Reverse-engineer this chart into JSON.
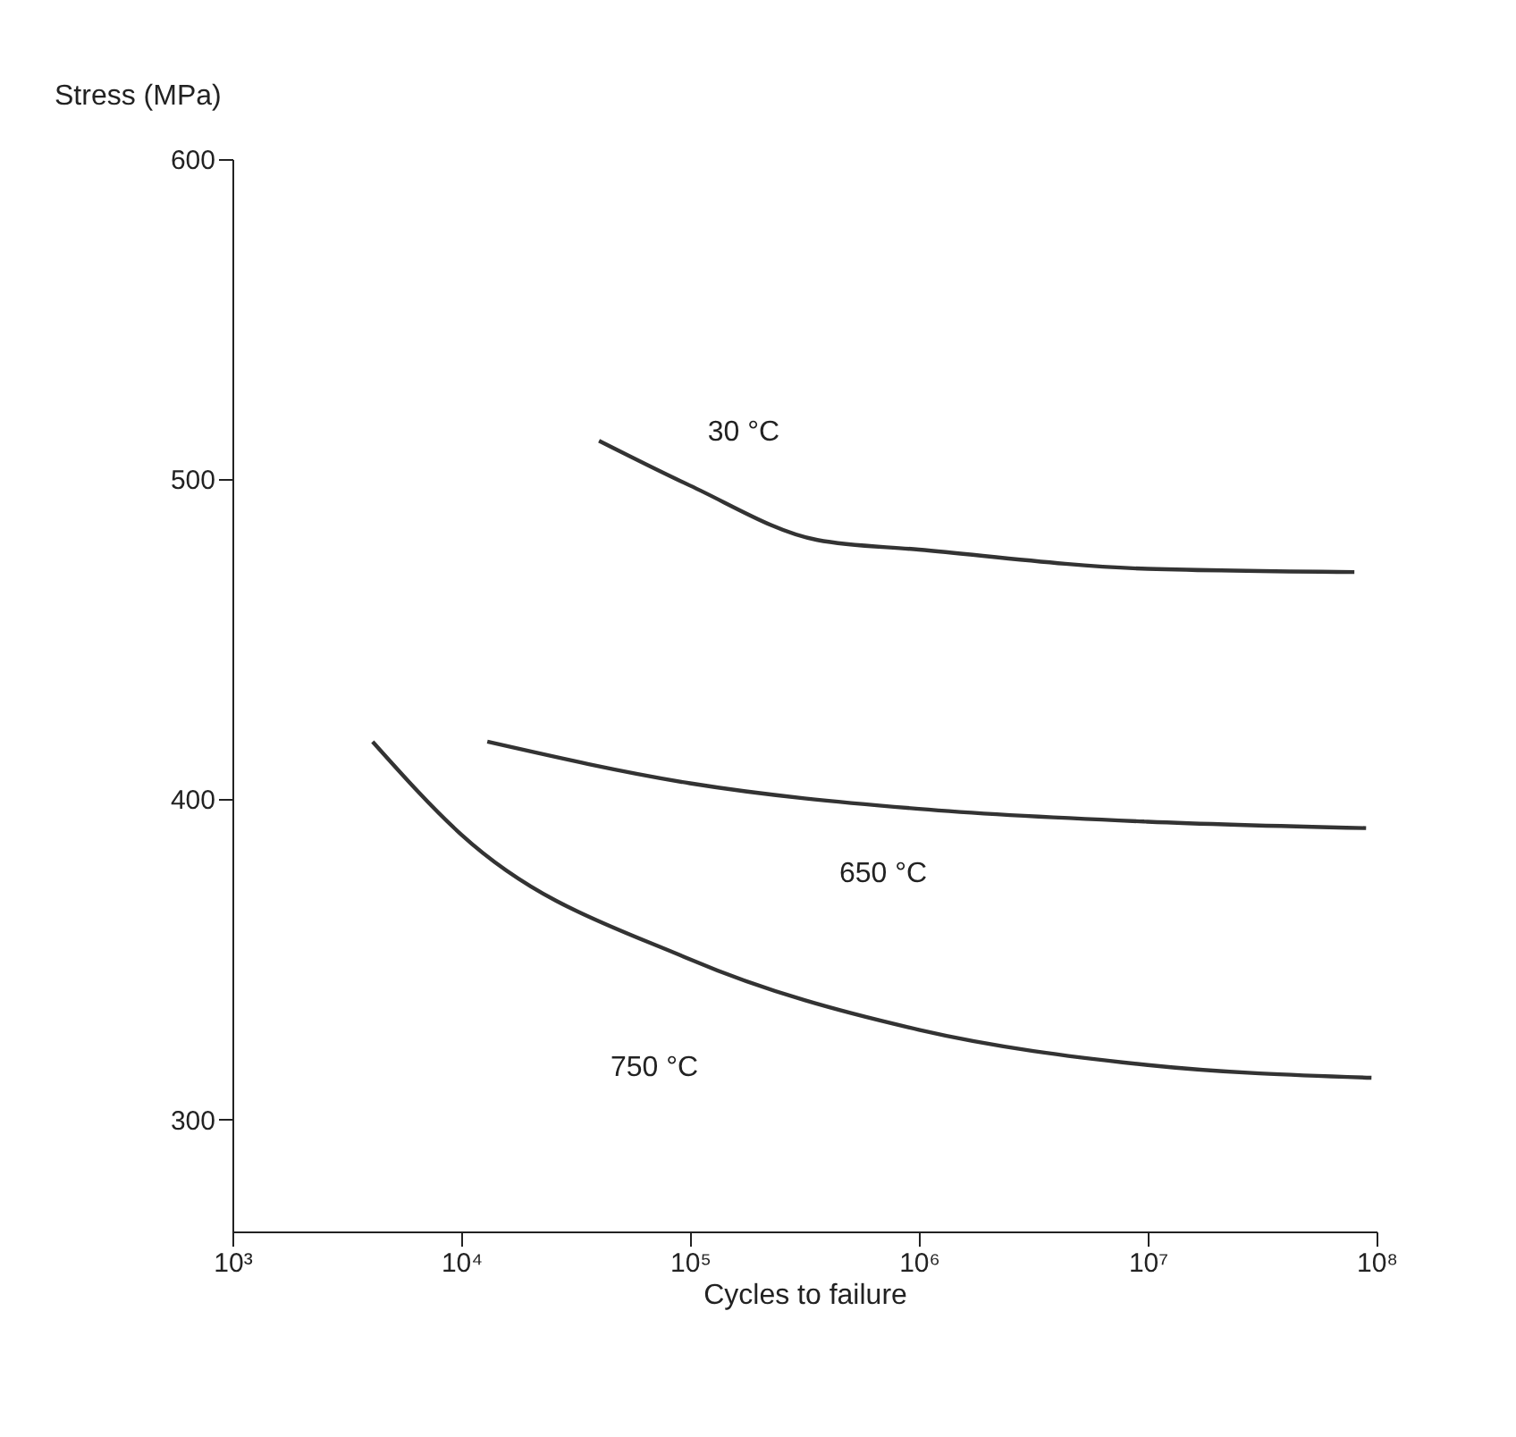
{
  "chart_data": {
    "type": "line",
    "xlabel": "Cycles to failure",
    "ylabel": "Stress (MPa)",
    "log": "x",
    "grid": false,
    "legend": false,
    "marker": "none",
    "line_style": "solid",
    "xlim": [
      1000,
      100000000
    ],
    "xticks": [
      {
        "value": 1000,
        "label": "10³"
      },
      {
        "value": 10000,
        "label": "10⁴"
      },
      {
        "value": 100000,
        "label": "10⁵"
      },
      {
        "value": 1000000,
        "label": "10⁶"
      },
      {
        "value": 10000000,
        "label": "10⁷"
      },
      {
        "value": 100000000,
        "label": "10⁸"
      }
    ],
    "ylim": [
      265,
      600
    ],
    "yticks": [
      300,
      400,
      500,
      600
    ],
    "series": [
      {
        "name": "30 °C",
        "color": "#333333",
        "x": [
          40000,
          100000,
          360000,
          1000000,
          10000000,
          80000000
        ],
        "values": [
          512,
          498,
          481,
          478,
          472,
          471
        ]
      },
      {
        "name": "650 °C",
        "color": "#333333",
        "x": [
          13000,
          100000,
          1000000,
          10000000,
          90000000
        ],
        "values": [
          418,
          405,
          397,
          393,
          391
        ]
      },
      {
        "name": "750 °C",
        "color": "#333333",
        "x": [
          4100,
          10000,
          100000,
          1000000,
          10000000,
          95000000
        ],
        "values": [
          418,
          389,
          350,
          328,
          317,
          313
        ]
      }
    ]
  }
}
